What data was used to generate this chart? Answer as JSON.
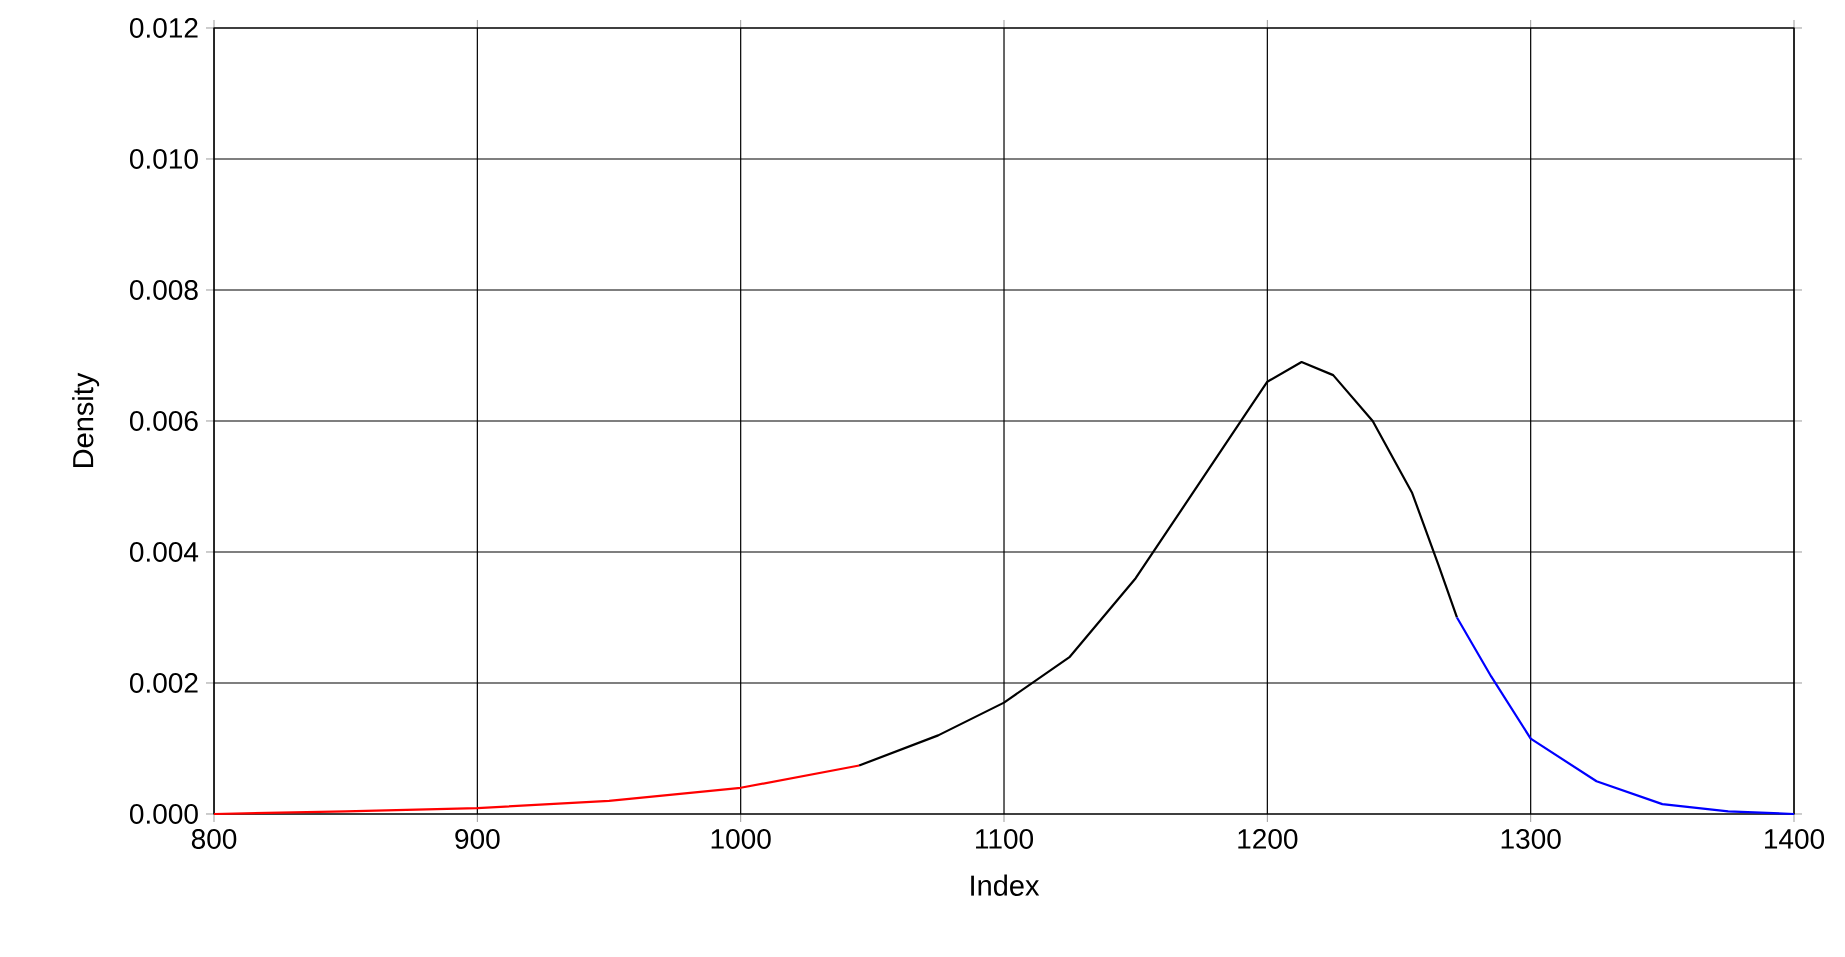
{
  "chart_data": {
    "type": "line",
    "xlabel": "Index",
    "ylabel": "Density",
    "xlim": [
      800,
      1400
    ],
    "ylim": [
      0,
      0.012
    ],
    "xticks": [
      800,
      900,
      1000,
      1100,
      1200,
      1300,
      1400
    ],
    "yticks": [
      {
        "value": 0,
        "label": "0.000"
      },
      {
        "value": 0.002,
        "label": "0.002"
      },
      {
        "value": 0.004,
        "label": "0.004"
      },
      {
        "value": 0.006,
        "label": "0.006"
      },
      {
        "value": 0.008,
        "label": "0.008"
      },
      {
        "value": 0.01,
        "label": "0.010"
      },
      {
        "value": 0.012,
        "label": "0.012"
      }
    ],
    "grid": true,
    "marker": "none",
    "line_style": "solid",
    "series": [
      {
        "color": "#ff0000",
        "x": [
          800,
          850,
          900,
          950,
          1000,
          1045
        ],
        "values": [
          0.0,
          4e-05,
          9e-05,
          0.0002,
          0.0004,
          0.00074
        ]
      },
      {
        "color": "#000000",
        "x": [
          1045,
          1075,
          1100,
          1125,
          1150,
          1175,
          1190,
          1200,
          1213,
          1225,
          1240,
          1255,
          1265,
          1272
        ],
        "values": [
          0.00074,
          0.0012,
          0.0017,
          0.0024,
          0.0036,
          0.0051,
          0.006,
          0.0066,
          0.0069,
          0.0067,
          0.006,
          0.0049,
          0.0038,
          0.003
        ]
      },
      {
        "color": "#0000ff",
        "x": [
          1272,
          1285,
          1300,
          1325,
          1350,
          1375,
          1400
        ],
        "values": [
          0.003,
          0.0021,
          0.00115,
          0.0005,
          0.00015,
          4e-05,
          0.0
        ]
      }
    ]
  }
}
